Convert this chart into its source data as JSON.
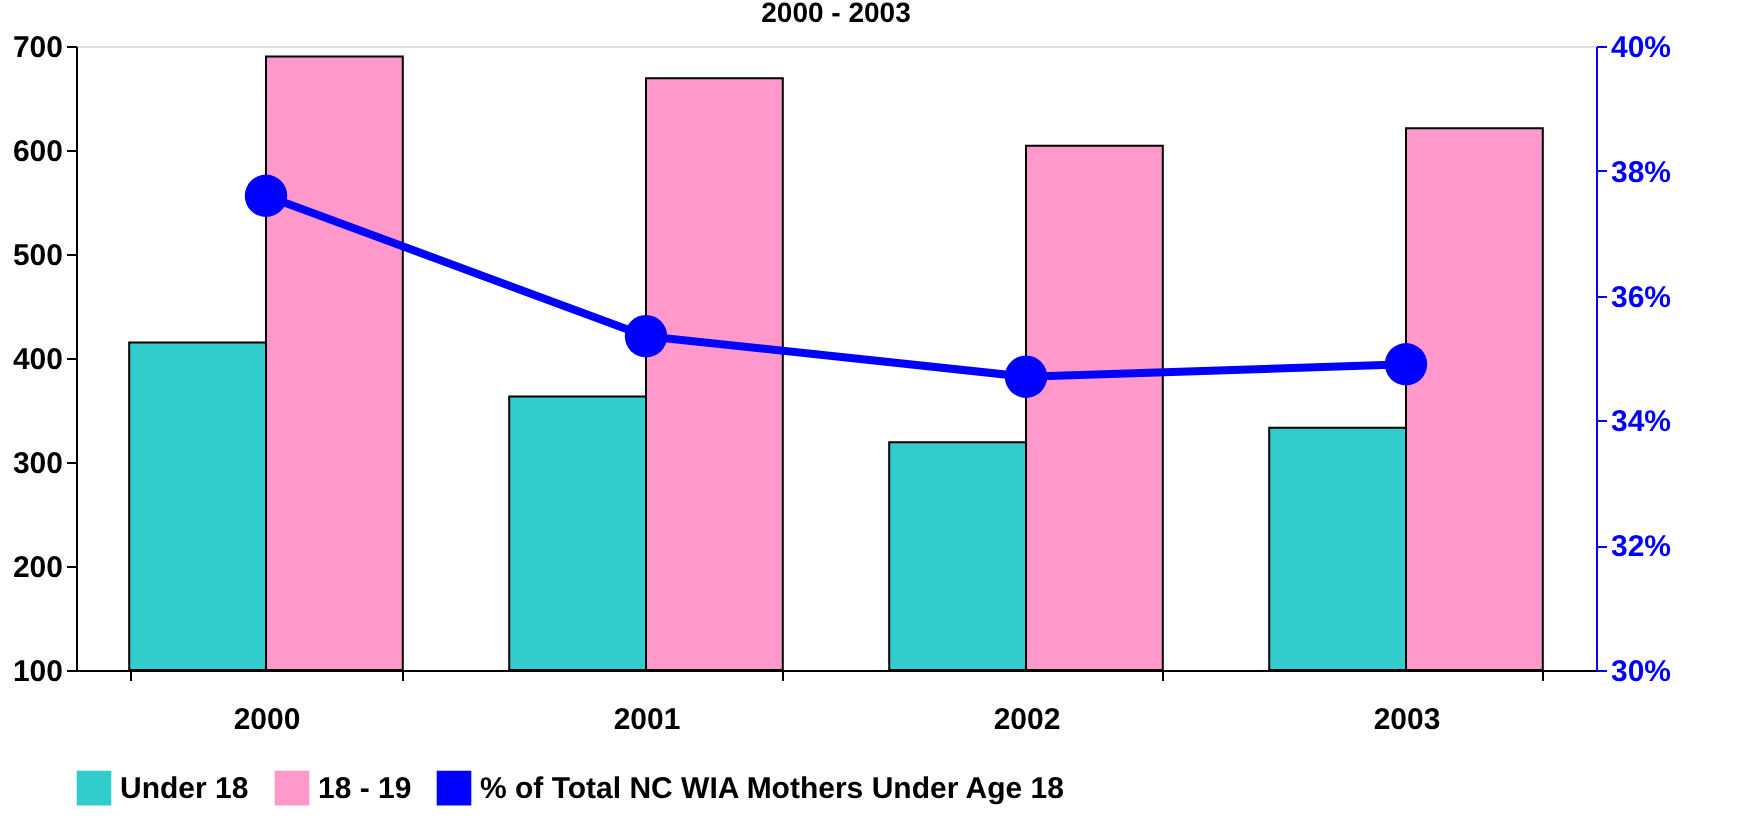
{
  "chart_data": {
    "type": "bar",
    "title": "2000 - 2003",
    "categories": [
      "2000",
      "2001",
      "2002",
      "2003"
    ],
    "series": [
      {
        "name": "Under 18",
        "color": "#33cccc",
        "values": [
          415,
          363,
          319,
          333
        ]
      },
      {
        "name": "18 - 19",
        "color": "#ff99cc",
        "values": [
          690,
          669,
          604,
          621
        ]
      },
      {
        "name": "% of Total NC WIA Mothers Under Age 18",
        "color": "#0000ff",
        "type": "line",
        "axis": "y2",
        "values": [
          37.6,
          35.35,
          34.7,
          34.9
        ]
      }
    ],
    "ylim": [
      100,
      700
    ],
    "yticks": [
      100,
      200,
      300,
      400,
      500,
      600,
      700
    ],
    "y2lim": [
      30,
      40
    ],
    "y2ticks": [
      {
        "value": 30,
        "label": "30%"
      },
      {
        "value": 32,
        "label": "32%"
      },
      {
        "value": 34,
        "label": "34%"
      },
      {
        "value": 36,
        "label": "36%"
      },
      {
        "value": 38,
        "label": "38%"
      },
      {
        "value": 40,
        "label": "40%"
      }
    ],
    "marker": "circle",
    "grid": false,
    "legend": "bottom"
  }
}
